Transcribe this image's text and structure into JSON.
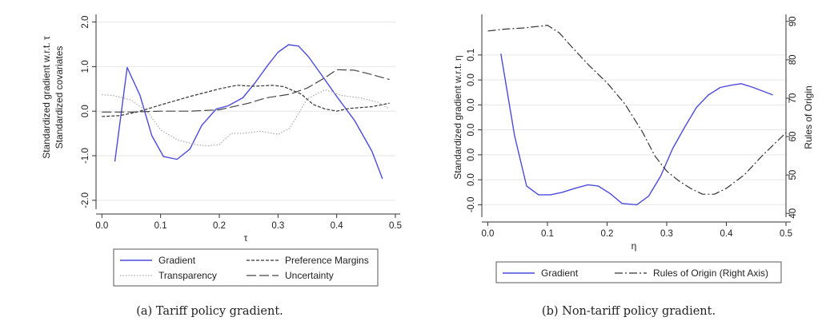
{
  "colors": {
    "gradient": "#4b4bdc",
    "preference": "#333333",
    "transparency": "#aaaaaa",
    "uncertainty": "#444444",
    "rules_of_origin": "#333333",
    "grid": "#e6e6e6"
  },
  "chart_data": [
    {
      "type": "line",
      "caption": "(a) Tariff policy gradient.",
      "xlabel": "τ",
      "ylabel_lines": [
        "Standardized gradient w.r.t. τ",
        "Standardized covariates"
      ],
      "xlim": [
        -0.01,
        0.5
      ],
      "ylim": [
        -2.2,
        2.1
      ],
      "x_ticks": [
        0.0,
        0.1,
        0.2,
        0.3,
        0.4,
        0.5
      ],
      "x_tick_labels": [
        "0.0",
        "0.1",
        "0.2",
        "0.3",
        "0.4",
        "0.5"
      ],
      "y_ticks": [
        -2,
        -1,
        0,
        1,
        2
      ],
      "y_tick_labels": [
        "-2.0",
        "-1.0",
        "0.0",
        "1.0",
        "2.0"
      ],
      "grid": true,
      "legend_position": "bottom",
      "series": [
        {
          "name": "Gradient",
          "key": "gradient",
          "style": "solid",
          "x": [
            0.022,
            0.043,
            0.065,
            0.085,
            0.105,
            0.128,
            0.15,
            0.17,
            0.195,
            0.215,
            0.24,
            0.26,
            0.282,
            0.3,
            0.318,
            0.335,
            0.352,
            0.375,
            0.4,
            0.43,
            0.46,
            0.478
          ],
          "y": [
            -1.13,
            0.98,
            0.35,
            -0.55,
            -1.02,
            -1.08,
            -0.85,
            -0.32,
            0.05,
            0.12,
            0.3,
            0.62,
            1.02,
            1.32,
            1.49,
            1.46,
            1.22,
            0.8,
            0.33,
            -0.2,
            -0.9,
            -1.52
          ]
        },
        {
          "name": "Preference Margins",
          "key": "preference",
          "style": "dashed",
          "x": [
            0.0,
            0.03,
            0.06,
            0.1,
            0.15,
            0.2,
            0.23,
            0.26,
            0.29,
            0.31,
            0.34,
            0.36,
            0.38,
            0.4,
            0.42,
            0.46,
            0.49
          ],
          "y": [
            -0.12,
            -0.1,
            -0.02,
            0.14,
            0.33,
            0.5,
            0.58,
            0.56,
            0.58,
            0.55,
            0.38,
            0.15,
            0.05,
            0.0,
            0.06,
            0.1,
            0.18
          ]
        },
        {
          "name": "Transparency",
          "key": "transparency",
          "style": "dotted",
          "x": [
            0.0,
            0.02,
            0.05,
            0.08,
            0.1,
            0.13,
            0.16,
            0.18,
            0.2,
            0.22,
            0.24,
            0.27,
            0.3,
            0.32,
            0.35,
            0.38,
            0.41,
            0.44,
            0.47,
            0.49
          ],
          "y": [
            0.37,
            0.35,
            0.25,
            -0.05,
            -0.42,
            -0.65,
            -0.75,
            -0.78,
            -0.75,
            -0.5,
            -0.5,
            -0.45,
            -0.52,
            -0.38,
            0.28,
            0.48,
            0.35,
            0.3,
            0.2,
            0.05
          ]
        },
        {
          "name": "Uncertainty",
          "key": "uncertainty",
          "style": "longdash",
          "x": [
            0.0,
            0.05,
            0.1,
            0.15,
            0.2,
            0.25,
            0.28,
            0.32,
            0.35,
            0.38,
            0.4,
            0.43,
            0.46,
            0.49
          ],
          "y": [
            -0.02,
            -0.02,
            0.0,
            0.0,
            0.03,
            0.18,
            0.3,
            0.38,
            0.52,
            0.75,
            0.93,
            0.92,
            0.82,
            0.71
          ]
        }
      ],
      "legend_rows": [
        [
          "gradient",
          "preference"
        ],
        [
          "transparency",
          "uncertainty"
        ]
      ]
    },
    {
      "type": "line",
      "caption": "(b) Non-tariff policy gradient.",
      "xlabel": "η",
      "ylabel": "Standardized gradient w.r.t. η",
      "ylabel_right": "Rules of Origin",
      "xlim": [
        -0.01,
        0.5
      ],
      "ylim": [
        -0.03,
        0.13
      ],
      "y2lim": [
        39,
        91
      ],
      "x_ticks": [
        0.0,
        0.1,
        0.2,
        0.3,
        0.4,
        0.5
      ],
      "x_tick_labels": [
        "0.0",
        "0.1",
        "0.2",
        "0.3",
        "0.4",
        "0.5"
      ],
      "y_ticks": [
        -0.02,
        0.0,
        0.02,
        0.04,
        0.06,
        0.08,
        0.1
      ],
      "y_tick_labels": [
        "-0.0",
        "0.0",
        "0.0",
        "0.0",
        "0.0",
        "0.0",
        "0.1"
      ],
      "y2_ticks": [
        40,
        50,
        60,
        70,
        80,
        90
      ],
      "y2_tick_labels": [
        "40",
        "50",
        "60",
        "70",
        "80",
        "90"
      ],
      "grid": true,
      "legend_position": "bottom",
      "series": [
        {
          "name": "Gradient",
          "key": "gradient",
          "style": "solid",
          "axis": "left",
          "x": [
            0.022,
            0.045,
            0.065,
            0.085,
            0.105,
            0.125,
            0.145,
            0.168,
            0.185,
            0.205,
            0.225,
            0.25,
            0.27,
            0.29,
            0.31,
            0.33,
            0.35,
            0.37,
            0.39,
            0.41,
            0.425,
            0.445,
            0.478
          ],
          "y": [
            0.101,
            0.035,
            -0.005,
            -0.012,
            -0.012,
            -0.01,
            -0.007,
            -0.004,
            -0.005,
            -0.011,
            -0.019,
            -0.02,
            -0.013,
            0.003,
            0.025,
            0.042,
            0.058,
            0.068,
            0.074,
            0.076,
            0.077,
            0.074,
            0.068
          ]
        },
        {
          "name": "Rules of Origin (Right Axis)",
          "key": "rules_of_origin",
          "style": "dashdot",
          "axis": "right",
          "x": [
            0.0,
            0.03,
            0.06,
            0.09,
            0.1,
            0.12,
            0.14,
            0.17,
            0.2,
            0.23,
            0.26,
            0.28,
            0.3,
            0.32,
            0.34,
            0.36,
            0.38,
            0.4,
            0.43,
            0.46,
            0.5
          ],
          "y": [
            87.5,
            88.0,
            88.3,
            88.8,
            89.0,
            87.0,
            83.5,
            78.5,
            74.0,
            68.5,
            61.0,
            55.0,
            51.0,
            48.5,
            46.5,
            45.0,
            45.0,
            46.5,
            50.0,
            55.0,
            61.0
          ]
        }
      ],
      "legend_rows": [
        [
          "gradient",
          "rules_of_origin"
        ]
      ]
    }
  ]
}
